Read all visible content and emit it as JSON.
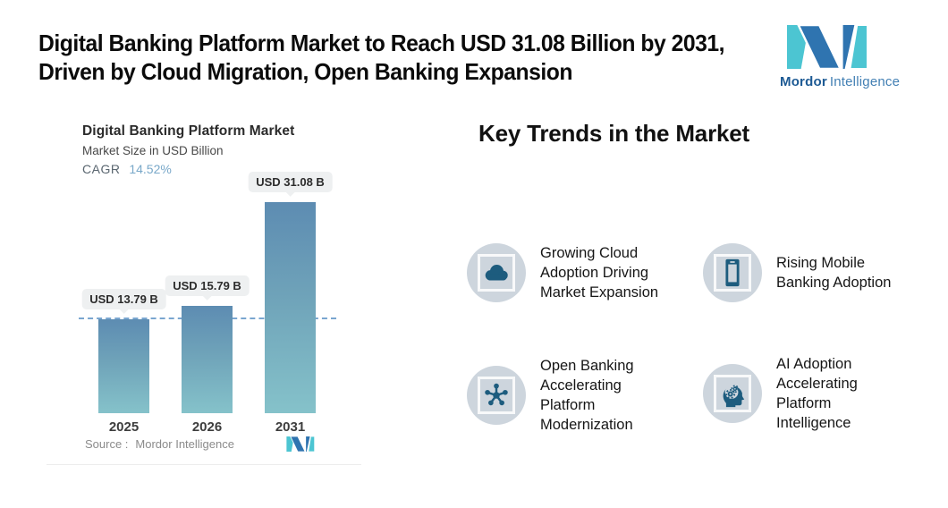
{
  "header": {
    "title_line1": "Digital Banking Platform Market to Reach USD 31.08 Billion by 2031,",
    "title_line2": "Driven by Cloud Migration, Open Banking Expansion"
  },
  "logo": {
    "brand_bold": "Mordor",
    "brand_light": "Intelligence",
    "dark_blue": "#2f74b0",
    "teal": "#4cc5d2"
  },
  "chart_card": {
    "title": "Digital Banking Platform Market",
    "subtitle": "Market Size in USD Billion",
    "cagr_label": "CAGR",
    "cagr_value": "14.52%",
    "source_label": "Source :",
    "source_value": "Mordor Intelligence"
  },
  "chart_data": {
    "type": "bar",
    "title": "Digital Banking Platform Market",
    "ylabel": "Market Size in USD Billion",
    "cagr_percent": "14.52%",
    "categories": [
      "2025",
      "2026",
      "2031"
    ],
    "values": [
      13.79,
      15.79,
      31.08
    ],
    "value_labels": [
      "USD 13.79 B",
      "USD 15.79 B",
      "USD 31.08 B"
    ],
    "ylim": [
      0,
      31.08
    ],
    "baseline_marker_value": 13.79,
    "grid": false,
    "legend": false,
    "bar_gradient_top": "#5d8cb2",
    "bar_gradient_bottom": "#85c2ca",
    "dashed_line_color": "#7aa6d0"
  },
  "trends": {
    "heading": "Key Trends in the Market",
    "items": [
      {
        "icon": "cloud-icon",
        "label": "Growing Cloud Adoption Driving Market Expansion"
      },
      {
        "icon": "mobile-phone-icon",
        "label": "Rising Mobile Banking Adoption"
      },
      {
        "icon": "network-hub-icon",
        "label": "Open Banking Accelerating Platform Modernization"
      },
      {
        "icon": "ai-head-icon",
        "label": "AI Adoption Accelerating Platform Intelligence"
      }
    ]
  },
  "colors": {
    "icon_glyph": "#1d5c7e",
    "icon_tile": "#cdd5dd",
    "pill_bg": "#eef0f1"
  }
}
